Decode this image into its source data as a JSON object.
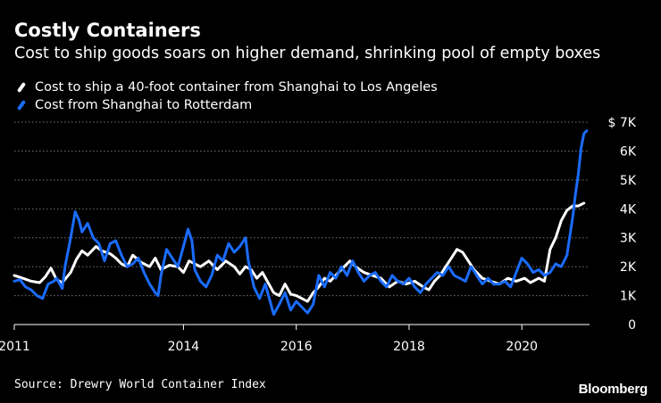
{
  "title": "Costly Containers",
  "subtitle": "Cost to ship goods soars on higher demand, shrinking pool of empty boxes",
  "source": "Source: Drewry World Container Index",
  "brand": "Bloomberg",
  "colors": {
    "background": "#000000",
    "la": "#ffffff",
    "rotterdam": "#1a6cff",
    "grid": "#777777"
  },
  "chart_data": {
    "type": "line",
    "grid": true,
    "legend_placement": "top-left",
    "xlim": [
      2011,
      2021.2
    ],
    "ylim": [
      0,
      7000
    ],
    "x_ticks": [
      {
        "value": 2011,
        "label": "2011"
      },
      {
        "value": 2014,
        "label": "2014"
      },
      {
        "value": 2016,
        "label": "2016"
      },
      {
        "value": 2018,
        "label": "2018"
      },
      {
        "value": 2020,
        "label": "2020"
      }
    ],
    "y_ticks": [
      {
        "value": 0,
        "label": "0"
      },
      {
        "value": 1000,
        "label": "1K"
      },
      {
        "value": 2000,
        "label": "2K"
      },
      {
        "value": 3000,
        "label": "3K"
      },
      {
        "value": 4000,
        "label": "4K"
      },
      {
        "value": 5000,
        "label": "5K"
      },
      {
        "value": 6000,
        "label": "6K"
      },
      {
        "value": 7000,
        "label": "$ 7K"
      }
    ],
    "series": [
      {
        "name": "Cost to ship a 40-foot container from Shanghai to Los Angeles",
        "color": "#ffffff",
        "points": [
          [
            2011.0,
            1700
          ],
          [
            2011.15,
            1600
          ],
          [
            2011.3,
            1500
          ],
          [
            2011.45,
            1450
          ],
          [
            2011.55,
            1650
          ],
          [
            2011.65,
            1950
          ],
          [
            2011.75,
            1550
          ],
          [
            2011.85,
            1450
          ],
          [
            2012.0,
            1800
          ],
          [
            2012.1,
            2250
          ],
          [
            2012.2,
            2550
          ],
          [
            2012.3,
            2400
          ],
          [
            2012.45,
            2700
          ],
          [
            2012.55,
            2550
          ],
          [
            2012.7,
            2450
          ],
          [
            2012.8,
            2300
          ],
          [
            2012.9,
            2100
          ],
          [
            2013.0,
            2000
          ],
          [
            2013.1,
            2400
          ],
          [
            2013.25,
            2150
          ],
          [
            2013.4,
            2000
          ],
          [
            2013.5,
            2300
          ],
          [
            2013.6,
            1900
          ],
          [
            2013.75,
            2050
          ],
          [
            2013.9,
            2000
          ],
          [
            2014.0,
            1800
          ],
          [
            2014.1,
            2200
          ],
          [
            2014.2,
            2100
          ],
          [
            2014.3,
            2000
          ],
          [
            2014.45,
            2200
          ],
          [
            2014.6,
            1900
          ],
          [
            2014.75,
            2200
          ],
          [
            2014.9,
            2000
          ],
          [
            2015.0,
            1750
          ],
          [
            2015.1,
            2000
          ],
          [
            2015.2,
            1900
          ],
          [
            2015.3,
            1600
          ],
          [
            2015.4,
            1800
          ],
          [
            2015.5,
            1450
          ],
          [
            2015.6,
            1100
          ],
          [
            2015.7,
            1000
          ],
          [
            2015.8,
            1400
          ],
          [
            2015.9,
            1050
          ],
          [
            2016.0,
            1000
          ],
          [
            2016.1,
            900
          ],
          [
            2016.2,
            800
          ],
          [
            2016.3,
            1100
          ],
          [
            2016.4,
            1300
          ],
          [
            2016.5,
            1600
          ],
          [
            2016.6,
            1500
          ],
          [
            2016.75,
            1800
          ],
          [
            2016.85,
            2000
          ],
          [
            2016.95,
            2200
          ],
          [
            2017.05,
            2000
          ],
          [
            2017.2,
            1800
          ],
          [
            2017.35,
            1700
          ],
          [
            2017.5,
            1600
          ],
          [
            2017.65,
            1300
          ],
          [
            2017.8,
            1500
          ],
          [
            2017.95,
            1400
          ],
          [
            2018.1,
            1500
          ],
          [
            2018.25,
            1300
          ],
          [
            2018.35,
            1200
          ],
          [
            2018.45,
            1500
          ],
          [
            2018.55,
            1700
          ],
          [
            2018.65,
            2000
          ],
          [
            2018.75,
            2300
          ],
          [
            2018.85,
            2600
          ],
          [
            2018.95,
            2500
          ],
          [
            2019.05,
            2200
          ],
          [
            2019.15,
            1900
          ],
          [
            2019.3,
            1600
          ],
          [
            2019.45,
            1500
          ],
          [
            2019.6,
            1400
          ],
          [
            2019.75,
            1600
          ],
          [
            2019.9,
            1500
          ],
          [
            2020.05,
            1600
          ],
          [
            2020.15,
            1450
          ],
          [
            2020.3,
            1600
          ],
          [
            2020.4,
            1500
          ],
          [
            2020.5,
            2600
          ],
          [
            2020.6,
            3000
          ],
          [
            2020.7,
            3600
          ],
          [
            2020.8,
            3950
          ],
          [
            2020.9,
            4100
          ],
          [
            2021.0,
            4100
          ],
          [
            2021.1,
            4200
          ]
        ]
      },
      {
        "name": "Cost from Shanghai to Rotterdam",
        "color": "#1a6cff",
        "points": [
          [
            2011.0,
            1500
          ],
          [
            2011.1,
            1550
          ],
          [
            2011.2,
            1300
          ],
          [
            2011.3,
            1200
          ],
          [
            2011.4,
            1000
          ],
          [
            2011.5,
            900
          ],
          [
            2011.6,
            1400
          ],
          [
            2011.7,
            1500
          ],
          [
            2011.75,
            1600
          ],
          [
            2011.85,
            1250
          ],
          [
            2011.9,
            2000
          ],
          [
            2012.0,
            3000
          ],
          [
            2012.08,
            3900
          ],
          [
            2012.15,
            3600
          ],
          [
            2012.2,
            3200
          ],
          [
            2012.3,
            3500
          ],
          [
            2012.4,
            3000
          ],
          [
            2012.5,
            2800
          ],
          [
            2012.6,
            2200
          ],
          [
            2012.7,
            2800
          ],
          [
            2012.8,
            2900
          ],
          [
            2012.9,
            2400
          ],
          [
            2013.0,
            2000
          ],
          [
            2013.1,
            2100
          ],
          [
            2013.2,
            2300
          ],
          [
            2013.3,
            1800
          ],
          [
            2013.4,
            1400
          ],
          [
            2013.5,
            1100
          ],
          [
            2013.55,
            1000
          ],
          [
            2013.6,
            1700
          ],
          [
            2013.7,
            2600
          ],
          [
            2013.8,
            2300
          ],
          [
            2013.9,
            2000
          ],
          [
            2014.0,
            2700
          ],
          [
            2014.08,
            3300
          ],
          [
            2014.15,
            2900
          ],
          [
            2014.2,
            1900
          ],
          [
            2014.3,
            1500
          ],
          [
            2014.4,
            1300
          ],
          [
            2014.5,
            1700
          ],
          [
            2014.6,
            2400
          ],
          [
            2014.7,
            2200
          ],
          [
            2014.8,
            2800
          ],
          [
            2014.9,
            2500
          ],
          [
            2015.0,
            2700
          ],
          [
            2015.1,
            3000
          ],
          [
            2015.15,
            2200
          ],
          [
            2015.25,
            1300
          ],
          [
            2015.35,
            900
          ],
          [
            2015.45,
            1400
          ],
          [
            2015.55,
            700
          ],
          [
            2015.6,
            350
          ],
          [
            2015.7,
            700
          ],
          [
            2015.8,
            1100
          ],
          [
            2015.9,
            500
          ],
          [
            2016.0,
            800
          ],
          [
            2016.1,
            600
          ],
          [
            2016.2,
            400
          ],
          [
            2016.3,
            700
          ],
          [
            2016.4,
            1700
          ],
          [
            2016.5,
            1300
          ],
          [
            2016.6,
            1800
          ],
          [
            2016.7,
            1600
          ],
          [
            2016.8,
            2000
          ],
          [
            2016.9,
            1700
          ],
          [
            2017.0,
            2200
          ],
          [
            2017.1,
            1800
          ],
          [
            2017.2,
            1500
          ],
          [
            2017.3,
            1700
          ],
          [
            2017.4,
            1800
          ],
          [
            2017.5,
            1500
          ],
          [
            2017.6,
            1300
          ],
          [
            2017.7,
            1700
          ],
          [
            2017.8,
            1500
          ],
          [
            2017.9,
            1400
          ],
          [
            2018.0,
            1600
          ],
          [
            2018.1,
            1300
          ],
          [
            2018.2,
            1100
          ],
          [
            2018.3,
            1400
          ],
          [
            2018.4,
            1600
          ],
          [
            2018.5,
            1800
          ],
          [
            2018.6,
            1700
          ],
          [
            2018.7,
            2000
          ],
          [
            2018.8,
            1700
          ],
          [
            2018.9,
            1600
          ],
          [
            2019.0,
            1500
          ],
          [
            2019.1,
            2000
          ],
          [
            2019.2,
            1700
          ],
          [
            2019.3,
            1400
          ],
          [
            2019.4,
            1600
          ],
          [
            2019.5,
            1400
          ],
          [
            2019.6,
            1400
          ],
          [
            2019.7,
            1500
          ],
          [
            2019.8,
            1300
          ],
          [
            2019.9,
            1800
          ],
          [
            2020.0,
            2300
          ],
          [
            2020.1,
            2100
          ],
          [
            2020.2,
            1800
          ],
          [
            2020.3,
            1900
          ],
          [
            2020.4,
            1700
          ],
          [
            2020.5,
            1800
          ],
          [
            2020.6,
            2100
          ],
          [
            2020.7,
            2000
          ],
          [
            2020.8,
            2400
          ],
          [
            2020.9,
            3700
          ],
          [
            2020.95,
            4500
          ],
          [
            2021.0,
            5200
          ],
          [
            2021.05,
            6100
          ],
          [
            2021.1,
            6600
          ],
          [
            2021.15,
            6700
          ]
        ]
      }
    ]
  }
}
